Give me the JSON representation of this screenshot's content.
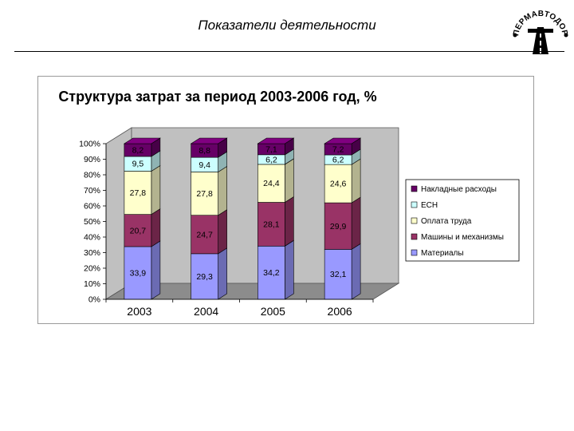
{
  "header": {
    "title": "Показатели деятельности",
    "logo_text": "ПЕРМАВТОДОР",
    "logo_icon": "road-emblem-icon"
  },
  "chart_data": {
    "type": "bar",
    "stacked": true,
    "percent": true,
    "style": "3d",
    "title": "Структура  затрат за период 2003-2006 год, %",
    "xlabel": "",
    "ylabel": "",
    "ylim": [
      0,
      100
    ],
    "y_ticks": [
      "0%",
      "10%",
      "20%",
      "30%",
      "40%",
      "50%",
      "60%",
      "70%",
      "80%",
      "90%",
      "100%"
    ],
    "categories": [
      "2003",
      "2004",
      "2005",
      "2006"
    ],
    "series": [
      {
        "name": "Материалы",
        "color": "#9999ff",
        "values": [
          33.9,
          29.3,
          34.2,
          32.1
        ],
        "labels": [
          "33,9",
          "29,3",
          "34,2",
          "32,1"
        ]
      },
      {
        "name": "Машины и механизмы",
        "color": "#993366",
        "values": [
          20.7,
          24.7,
          28.1,
          29.9
        ],
        "labels": [
          "20,7",
          "24,7",
          "28,1",
          "29,9"
        ]
      },
      {
        "name": "Оплата труда",
        "color": "#ffffcc",
        "values": [
          27.8,
          27.8,
          24.4,
          24.6
        ],
        "labels": [
          "27,8",
          "27,8",
          "24,4",
          "24,6"
        ]
      },
      {
        "name": "ЕСН",
        "color": "#ccffff",
        "values": [
          9.5,
          9.4,
          6.2,
          6.2
        ],
        "labels": [
          "9,5",
          "9,4",
          "6,2",
          "6,2"
        ]
      },
      {
        "name": "Накладные расходы",
        "color": "#660066",
        "values": [
          8.2,
          8.8,
          7.1,
          7.2
        ],
        "labels": [
          "8,2",
          "8,8",
          "7,1",
          "7,2"
        ]
      }
    ],
    "legend_position": "right",
    "legend_order": [
      "Накладные расходы",
      "ЕСН",
      "Оплата труда",
      "Машины и механизмы",
      "Материалы"
    ],
    "grid": false,
    "wall_color": "#c0c0c0"
  }
}
